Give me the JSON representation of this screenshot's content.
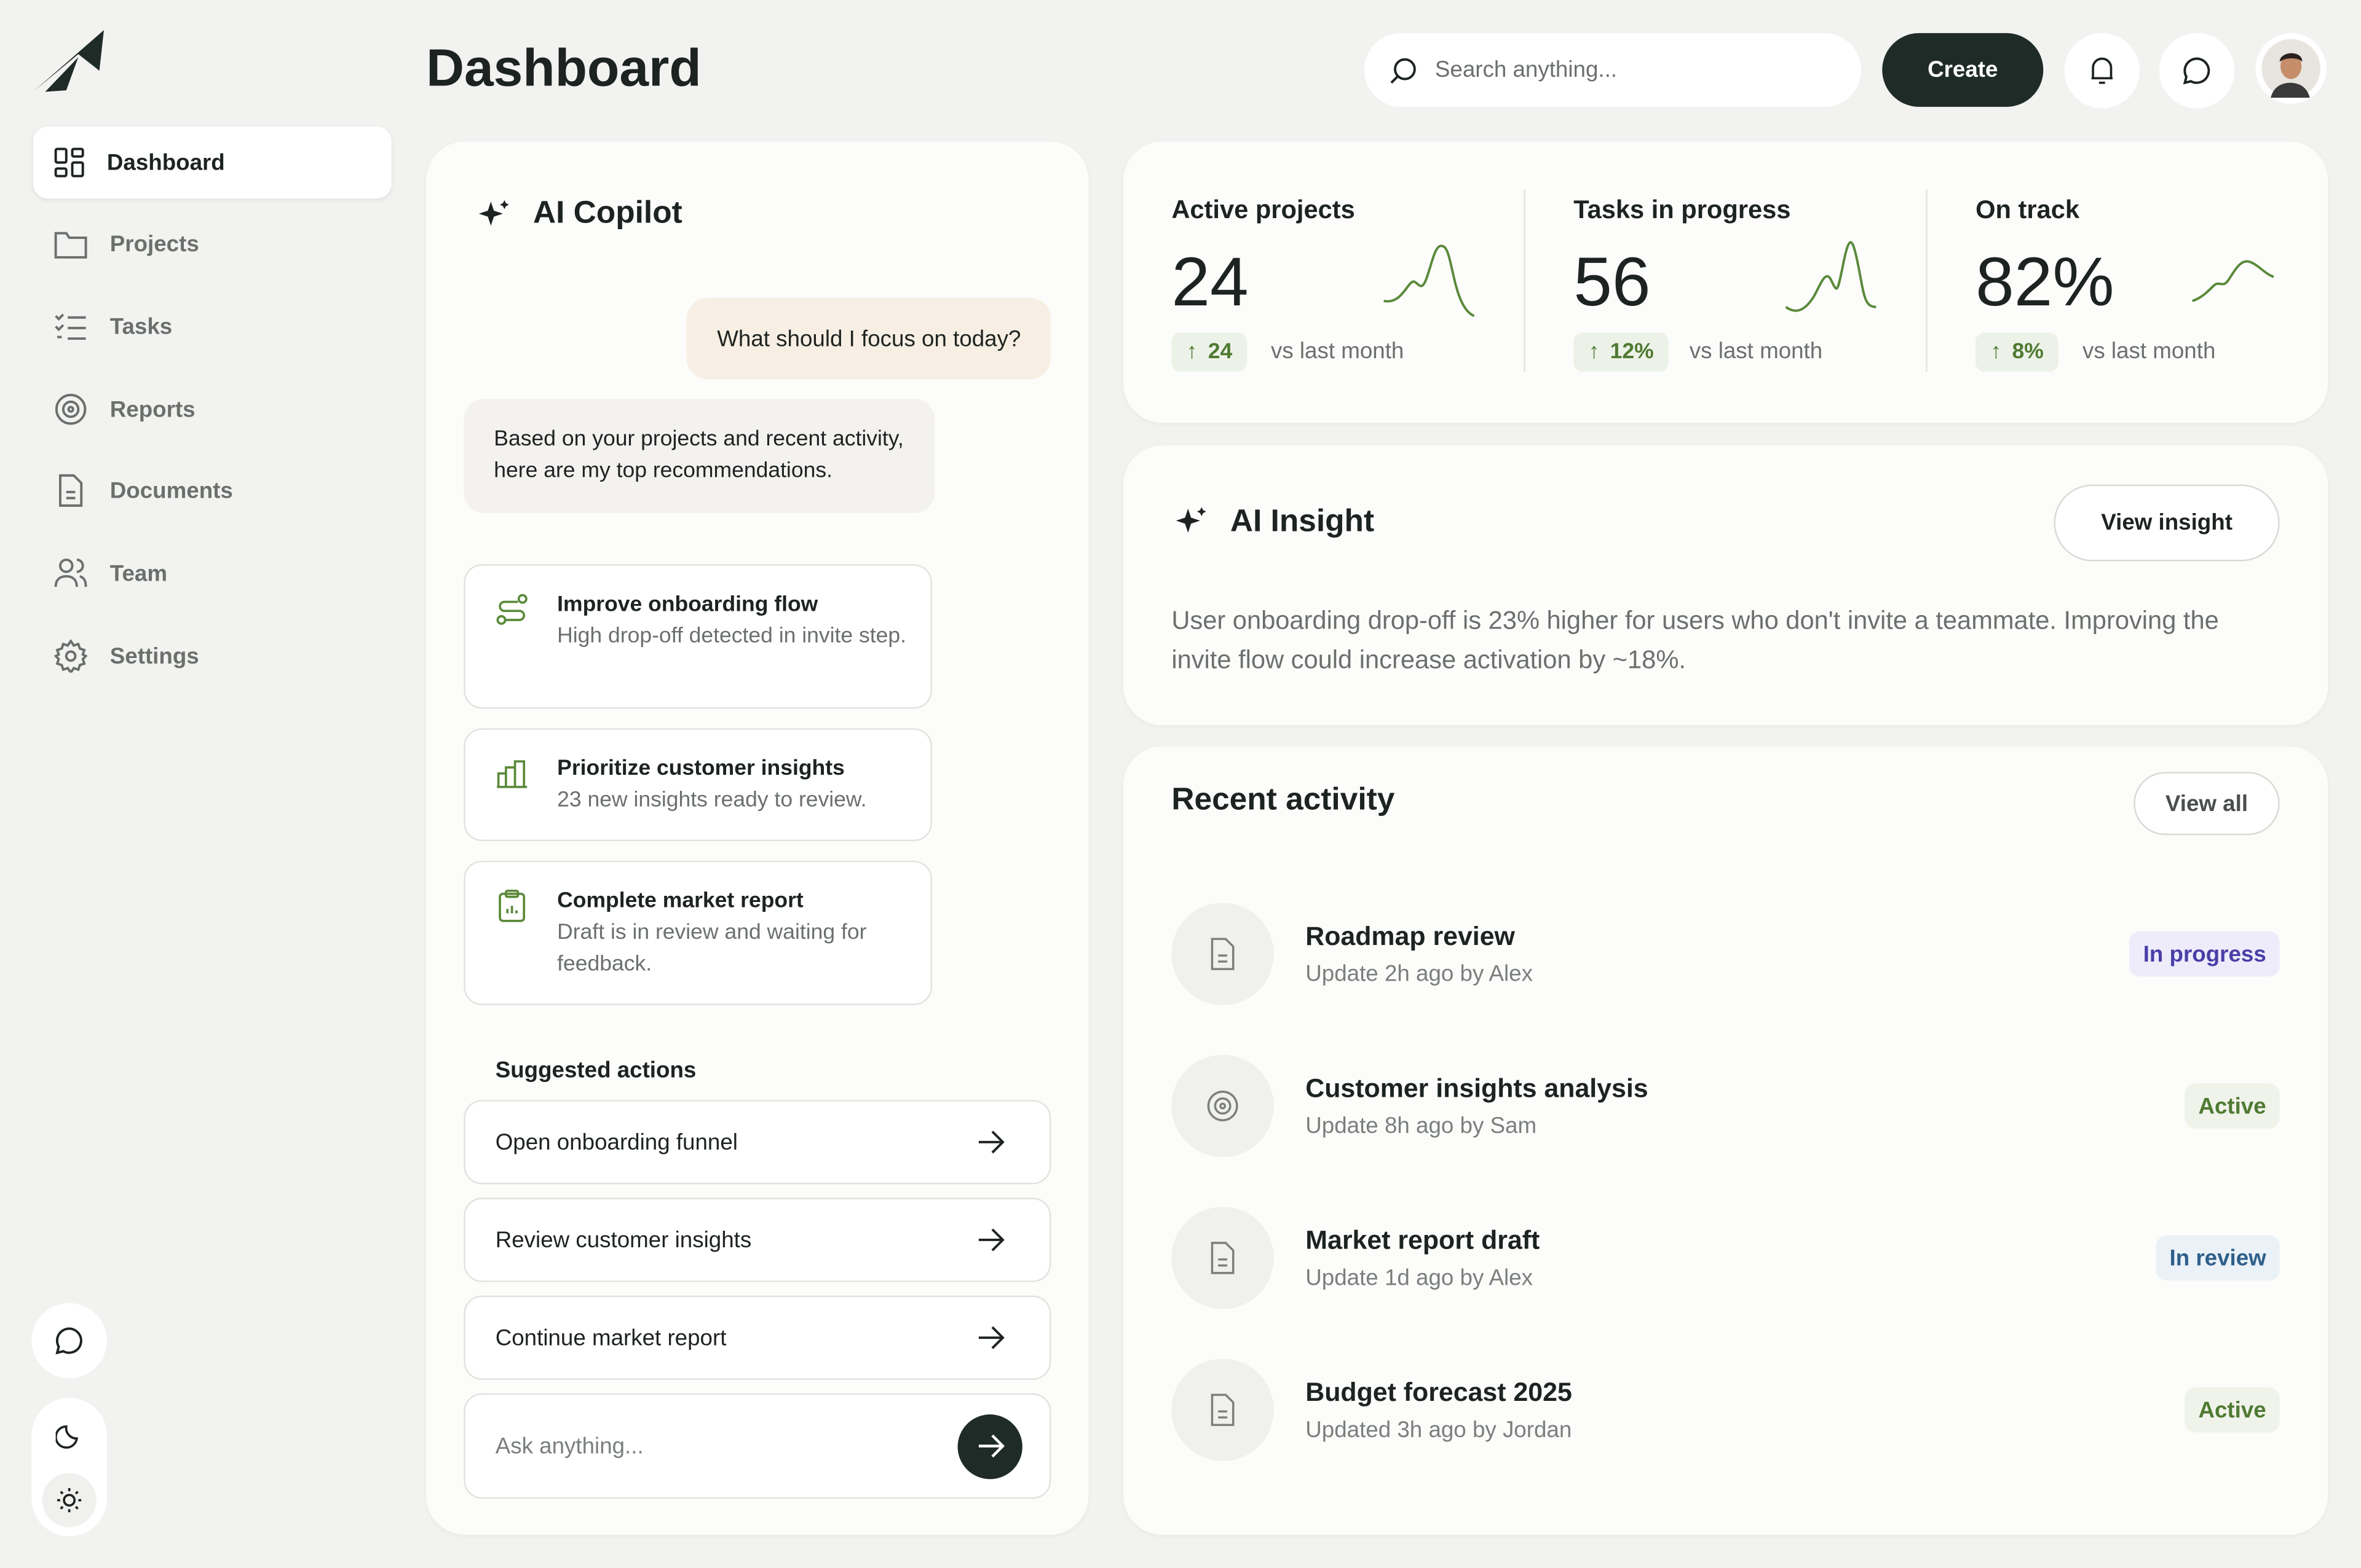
{
  "sidebar": {
    "nav": [
      "Dashboard",
      "Projects",
      "Tasks",
      "Reports",
      "Documents",
      "Team",
      "Settings"
    ]
  },
  "header": {
    "title": "Dashboard",
    "search_placeholder": "Search anything...",
    "create": "Create"
  },
  "copilot": {
    "title": "AI Copilot",
    "user_message": "What should I focus on today?",
    "reply": "Based on your projects and recent activity, here are my top recommendations.",
    "recommendations": [
      {
        "title": "Improve onboarding flow",
        "detail": "High drop-off detected in invite step."
      },
      {
        "title": "Prioritize customer insights",
        "detail": "23 new insights ready to review."
      },
      {
        "title": "Complete market report",
        "detail": "Draft is in review and waiting for feedback."
      }
    ],
    "suggested_title": "Suggested actions",
    "actions": [
      "Open onboarding funnel",
      "Review customer insights",
      "Continue market report"
    ],
    "input_placeholder": "Ask anything..."
  },
  "stats": [
    {
      "label": "Active projects",
      "value": "24",
      "change": "24",
      "note": "vs last month"
    },
    {
      "label": "Tasks in progress",
      "value": "56",
      "change": "12%",
      "note": "vs last month"
    },
    {
      "label": "On track",
      "value": "82%",
      "change": "8%",
      "note": "vs last month"
    }
  ],
  "insight": {
    "title": "AI Insight",
    "button": "View insight",
    "text": "User onboarding drop-off is 23% higher for users who don't invite a teammate. Improving the invite flow could increase activation by ~18%."
  },
  "activity": {
    "title": "Recent activity",
    "button": "View all",
    "items": [
      {
        "title": "Roadmap review",
        "meta": "Update 2h ago by Alex",
        "status": "In progress"
      },
      {
        "title": "Customer insights analysis",
        "meta": "Update 8h ago by Sam",
        "status": "Active"
      },
      {
        "title": "Market report draft",
        "meta": "Update 1d ago by Alex",
        "status": "In review"
      },
      {
        "title": "Budget forecast 2025",
        "meta": "Updated 3h ago by Jordan",
        "status": "Active"
      }
    ]
  }
}
